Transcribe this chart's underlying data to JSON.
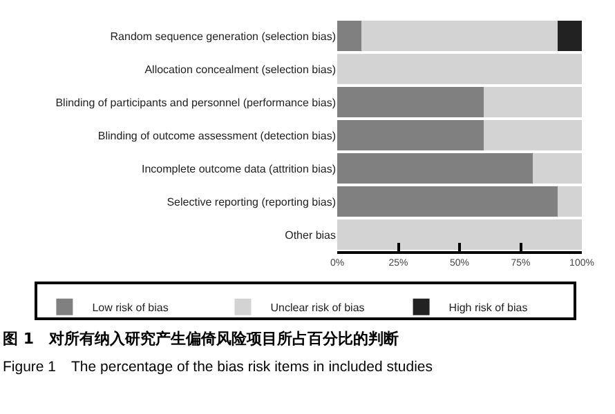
{
  "chart_data": {
    "type": "bar",
    "orientation": "horizontal",
    "stacked": true,
    "categories": [
      "Random sequence generation (selection bias)",
      "Allocation concealment (selection bias)",
      "Blinding of participants and personnel (performance bias)",
      "Blinding of outcome assessment (detection bias)",
      "Incomplete outcome data (attrition bias)",
      "Selective reporting (reporting bias)",
      "Other bias"
    ],
    "series": [
      {
        "name": "Low risk of bias",
        "color": "#808080",
        "values": [
          10,
          0,
          60,
          60,
          80,
          90,
          0
        ]
      },
      {
        "name": "Unclear risk of bias",
        "color": "#d3d3d3",
        "values": [
          80,
          100,
          40,
          40,
          20,
          10,
          100
        ]
      },
      {
        "name": "High risk of bias",
        "color": "#222222",
        "values": [
          10,
          0,
          0,
          0,
          0,
          0,
          0
        ]
      }
    ],
    "xlim": [
      0,
      100
    ],
    "xticks": [
      {
        "value": 0,
        "label": "0%"
      },
      {
        "value": 25,
        "label": "25%"
      },
      {
        "value": 50,
        "label": "50%"
      },
      {
        "value": 75,
        "label": "75%"
      },
      {
        "value": 100,
        "label": "100%"
      }
    ],
    "grid": false,
    "legend": "bottom",
    "annotations": [
      "图 1　对所有纳入研究产生偏倚风险项目所占百分比的判断",
      "Figure 1　The percentage of the bias risk items in included studies"
    ]
  }
}
